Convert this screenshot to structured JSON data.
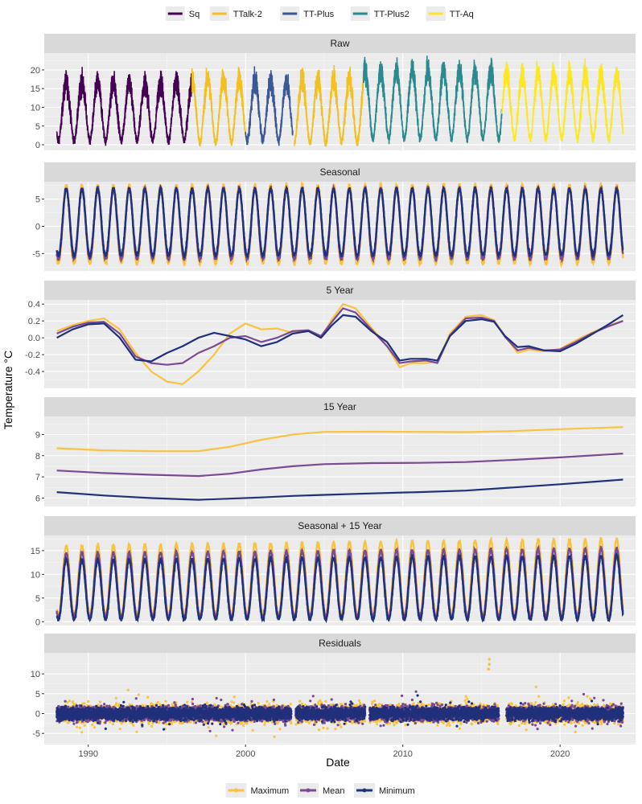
{
  "chart_data": {
    "type": "line",
    "xlabel": "Date",
    "ylabel": "Temperature °C",
    "xlim": [
      1987.2,
      2024.8
    ],
    "x_ticks": [
      1990,
      2000,
      2010,
      2020
    ],
    "legend_top": {
      "placement": "top",
      "entries": [
        {
          "label": "Sq",
          "color": "#440154"
        },
        {
          "label": "TTalk-2",
          "color": "#f2c021"
        },
        {
          "label": "TT-Plus",
          "color": "#3b5796"
        },
        {
          "label": "TT-Plus2",
          "color": "#2a8a8f"
        },
        {
          "label": "TT-Aq",
          "color": "#fde725"
        }
      ]
    },
    "legend_bottom": {
      "placement": "bottom",
      "entries": [
        {
          "label": "Maximum",
          "color": "#f7c340"
        },
        {
          "label": "Mean",
          "color": "#7a4a94"
        },
        {
          "label": "Minimum",
          "color": "#20307a"
        }
      ]
    },
    "panels": [
      {
        "title": "Raw",
        "ylim": [
          -1.5,
          24.5
        ],
        "yticks": [
          0,
          5,
          10,
          15,
          20
        ],
        "sensor_segments": [
          {
            "sensor": "Sq",
            "start": 1988.0,
            "end": 1996.6,
            "base": 1.0,
            "amp": 15.5
          },
          {
            "sensor": "TTalk-2",
            "start": 1996.6,
            "end": 2000.0,
            "base": 0.5,
            "amp": 17.0
          },
          {
            "sensor": "TT-Plus",
            "start": 2000.0,
            "end": 2003.0,
            "base": 1.0,
            "amp": 16.0
          },
          {
            "sensor": "TTalk-2",
            "start": 2003.1,
            "end": 2007.5,
            "base": 0.5,
            "amp": 17.0
          },
          {
            "sensor": "TT-Plus2",
            "start": 2007.5,
            "end": 2016.3,
            "base": 1.5,
            "amp": 18.5
          },
          {
            "sensor": "TT-Aq",
            "start": 2016.3,
            "end": 2024.0,
            "base": 1.5,
            "amp": 17.5
          }
        ]
      },
      {
        "title": "Seasonal",
        "ylim": [
          -8.2,
          8.2
        ],
        "yticks": [
          -5,
          0,
          5
        ],
        "series": [
          {
            "name": "Maximum",
            "min": -6.8,
            "max": 7.6
          },
          {
            "name": "Mean",
            "min": -6.0,
            "max": 7.0
          },
          {
            "name": "Minimum",
            "min": -5.3,
            "max": 6.9
          }
        ]
      },
      {
        "title": "5 Year",
        "ylim": [
          -0.6,
          0.45
        ],
        "yticks": [
          -0.4,
          -0.2,
          0.0,
          0.2,
          0.4
        ],
        "series": [
          {
            "name": "Maximum",
            "x": [
              1988,
              1989,
              1990,
              1991,
              1992,
              1993,
              1994,
              1995,
              1996,
              1997,
              1998,
              1999,
              2000,
              2001,
              2002,
              2003,
              2004,
              2004.8,
              2005.5,
              2006.2,
              2007,
              2008,
              2009,
              2009.8,
              2010.5,
              2011.5,
              2012.2,
              2013,
              2014,
              2015,
              2015.8,
              2016.5,
              2017.3,
              2018,
              2019,
              2020,
              2021,
              2022,
              2023,
              2024
            ],
            "y": [
              0.08,
              0.15,
              0.2,
              0.23,
              0.1,
              -0.18,
              -0.4,
              -0.52,
              -0.55,
              -0.4,
              -0.2,
              0.05,
              0.17,
              0.1,
              0.11,
              0.06,
              0.08,
              0.0,
              0.22,
              0.4,
              0.35,
              0.12,
              -0.1,
              -0.35,
              -0.3,
              -0.3,
              -0.28,
              0.05,
              0.25,
              0.27,
              0.21,
              0.02,
              -0.18,
              -0.14,
              -0.16,
              -0.13,
              -0.03,
              0.06,
              0.14,
              0.2
            ]
          },
          {
            "name": "Mean",
            "x": [
              1988,
              1989,
              1990,
              1991,
              1992,
              1993,
              1994,
              1995,
              1996,
              1997,
              1998,
              1999,
              2000,
              2001,
              2002,
              2003,
              2004,
              2004.8,
              2005.5,
              2006.2,
              2007,
              2008,
              2009,
              2009.8,
              2010.5,
              2011.5,
              2012.2,
              2013,
              2014,
              2015,
              2015.8,
              2016.5,
              2017.3,
              2018,
              2019,
              2020,
              2021,
              2022,
              2023,
              2024
            ],
            "y": [
              0.05,
              0.13,
              0.18,
              0.19,
              0.05,
              -0.22,
              -0.3,
              -0.32,
              -0.3,
              -0.18,
              -0.1,
              0.0,
              0.02,
              -0.05,
              0.0,
              0.08,
              0.09,
              0.02,
              0.19,
              0.35,
              0.3,
              0.1,
              -0.1,
              -0.3,
              -0.28,
              -0.27,
              -0.3,
              0.03,
              0.23,
              0.24,
              0.2,
              0.01,
              -0.15,
              -0.12,
              -0.15,
              -0.14,
              -0.05,
              0.05,
              0.13,
              0.2
            ]
          },
          {
            "name": "Minimum",
            "x": [
              1988,
              1989,
              1990,
              1991,
              1992,
              1993,
              1994,
              1995,
              1996,
              1997,
              1998,
              1999,
              2000,
              2001,
              2002,
              2003,
              2004,
              2004.8,
              2005.5,
              2006.2,
              2007,
              2008,
              2009,
              2009.8,
              2010.5,
              2011.5,
              2012.2,
              2013,
              2014,
              2015,
              2015.8,
              2016.5,
              2017.3,
              2018,
              2019,
              2020,
              2021,
              2022,
              2023,
              2024
            ],
            "y": [
              0.0,
              0.1,
              0.16,
              0.17,
              0.0,
              -0.26,
              -0.28,
              -0.18,
              -0.1,
              0.0,
              0.06,
              0.02,
              -0.02,
              -0.1,
              -0.05,
              0.05,
              0.08,
              0.0,
              0.15,
              0.27,
              0.25,
              0.08,
              -0.05,
              -0.27,
              -0.25,
              -0.25,
              -0.27,
              0.02,
              0.2,
              0.22,
              0.19,
              0.02,
              -0.11,
              -0.1,
              -0.15,
              -0.16,
              -0.07,
              0.04,
              0.15,
              0.27
            ]
          }
        ]
      },
      {
        "title": "15 Year",
        "ylim": [
          5.6,
          9.85
        ],
        "yticks": [
          6,
          7,
          8,
          9
        ],
        "series": [
          {
            "name": "Maximum",
            "x": [
              1988,
              1991,
              1994,
              1997,
              1999,
              2001,
              2003,
              2005,
              2008,
              2011,
              2014,
              2017,
              2020,
              2024
            ],
            "y": [
              8.35,
              8.25,
              8.21,
              8.21,
              8.42,
              8.75,
              9.0,
              9.12,
              9.13,
              9.12,
              9.11,
              9.16,
              9.25,
              9.35
            ]
          },
          {
            "name": "Mean",
            "x": [
              1988,
              1991,
              1994,
              1997,
              1999,
              2001,
              2003,
              2005,
              2008,
              2011,
              2014,
              2017,
              2020,
              2024
            ],
            "y": [
              7.3,
              7.18,
              7.1,
              7.04,
              7.15,
              7.35,
              7.5,
              7.6,
              7.65,
              7.66,
              7.7,
              7.8,
              7.92,
              8.1
            ]
          },
          {
            "name": "Minimum",
            "x": [
              1988,
              1991,
              1994,
              1997,
              1999,
              2001,
              2003,
              2005,
              2008,
              2011,
              2014,
              2017,
              2020,
              2024
            ],
            "y": [
              6.28,
              6.12,
              6.0,
              5.92,
              5.97,
              6.03,
              6.1,
              6.15,
              6.22,
              6.28,
              6.35,
              6.5,
              6.65,
              6.87
            ]
          }
        ]
      },
      {
        "title": "Seasonal + 15 Year",
        "ylim": [
          -0.8,
          18.2
        ],
        "yticks": [
          0,
          5,
          10,
          15
        ],
        "series": [
          {
            "name": "Maximum",
            "min": 1.5,
            "max": 16.0,
            "max_end": 17.5
          },
          {
            "name": "Mean",
            "min": 1.0,
            "max": 14.5,
            "max_end": 15.5
          },
          {
            "name": "Minimum",
            "min": 0.5,
            "max": 13.0,
            "max_end": 14.0
          }
        ]
      },
      {
        "title": "Residuals",
        "ylim": [
          -7.8,
          15.3
        ],
        "yticks": [
          -5,
          0,
          5,
          10
        ],
        "coverage": [
          [
            1988.0,
            2002.9
          ],
          [
            2003.2,
            2007.6
          ],
          [
            2007.9,
            2016.1
          ],
          [
            2016.6,
            2024.0
          ]
        ],
        "series": [
          {
            "name": "Maximum",
            "spread": 2.2
          },
          {
            "name": "Mean",
            "spread": 1.8
          },
          {
            "name": "Minimum",
            "spread": 1.5
          }
        ],
        "outliers": [
          {
            "x": 2015.5,
            "y": 13.7
          },
          {
            "x": 2015.5,
            "y": 12.4
          },
          {
            "x": 2015.45,
            "y": 11.2
          }
        ]
      }
    ]
  }
}
